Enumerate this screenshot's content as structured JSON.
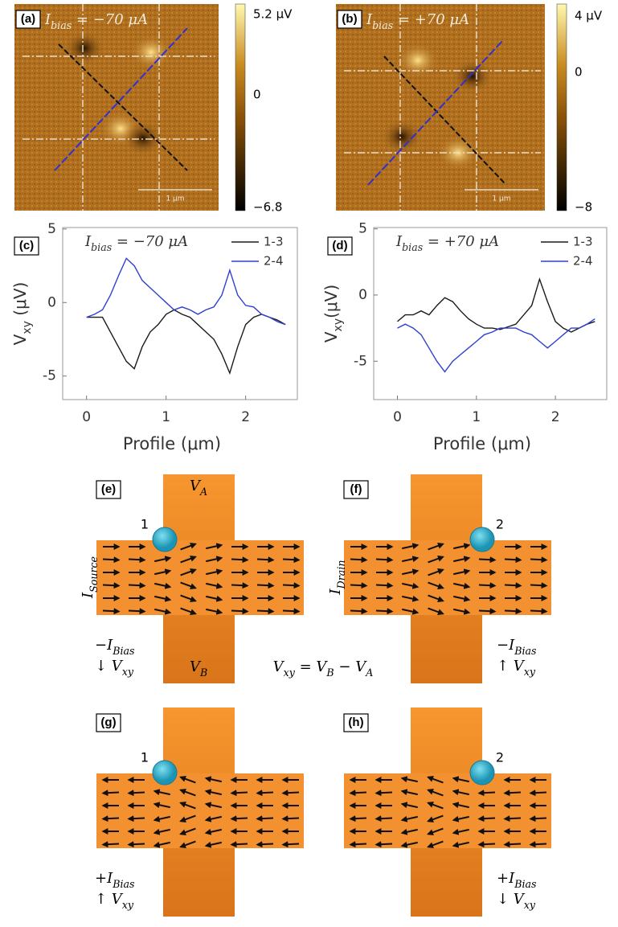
{
  "heatmaps": [
    {
      "label": "(a)",
      "title": [
        "I",
        "bias",
        " = −70 μA"
      ],
      "colorbar_labels": [
        "5.2 μV",
        "0",
        "−6.8"
      ],
      "scale_bar": "1 μm"
    },
    {
      "label": "(b)",
      "title": [
        "I",
        "bias",
        " = +70 μA"
      ],
      "colorbar_labels": [
        "4 μV",
        "0",
        "−8"
      ],
      "scale_bar": "1 μm"
    }
  ],
  "chart_data": [
    {
      "type": "line",
      "label": "(c)",
      "annotation": [
        "I",
        "bias",
        " = −70 μA"
      ],
      "xlabel": "Profile (μm)",
      "ylabel": [
        "V",
        "xy",
        " (μV)"
      ],
      "x": [
        0,
        0.1,
        0.2,
        0.3,
        0.4,
        0.5,
        0.6,
        0.7,
        0.8,
        0.9,
        1.0,
        1.1,
        1.2,
        1.3,
        1.4,
        1.5,
        1.6,
        1.7,
        1.8,
        1.9,
        2.0,
        2.1,
        2.2,
        2.3,
        2.4,
        2.5
      ],
      "xlim": [
        -0.3,
        2.65
      ],
      "ylim": [
        -6.6,
        5.1
      ],
      "xticks": [
        0,
        1,
        2
      ],
      "yticks": [
        -5,
        0,
        5
      ],
      "series": [
        {
          "name": "1-3",
          "color": "#1a1a1a",
          "values": [
            -1,
            -1,
            -1,
            -2,
            -3,
            -4,
            -4.5,
            -3,
            -2,
            -1.5,
            -0.8,
            -0.5,
            -0.8,
            -1,
            -1.5,
            -2,
            -2.5,
            -3.5,
            -4.8,
            -3,
            -1.5,
            -1,
            -0.8,
            -1,
            -1.2,
            -1.5
          ]
        },
        {
          "name": "2-4",
          "color": "#2f3fd0",
          "values": [
            -1,
            -0.8,
            -0.5,
            0.5,
            1.8,
            3,
            2.5,
            1.5,
            1,
            0.5,
            0,
            -0.5,
            -0.3,
            -0.5,
            -0.8,
            -0.5,
            -0.3,
            0.5,
            2.2,
            0.5,
            -0.2,
            -0.3,
            -0.8,
            -1,
            -1.3,
            -1.5
          ]
        }
      ]
    },
    {
      "type": "line",
      "label": "(d)",
      "annotation": [
        "I",
        "bias",
        " = +70 μA"
      ],
      "xlabel": "Profile (μm)",
      "ylabel": [
        "V",
        "xy",
        "(μV)"
      ],
      "x": [
        0,
        0.1,
        0.2,
        0.3,
        0.4,
        0.5,
        0.6,
        0.7,
        0.8,
        0.9,
        1.0,
        1.1,
        1.2,
        1.3,
        1.4,
        1.5,
        1.6,
        1.7,
        1.8,
        1.9,
        2.0,
        2.1,
        2.2,
        2.3,
        2.4,
        2.5
      ],
      "xlim": [
        -0.3,
        2.65
      ],
      "ylim": [
        -7.9,
        5.1
      ],
      "xticks": [
        0,
        1,
        2
      ],
      "yticks": [
        -5,
        0,
        5
      ],
      "series": [
        {
          "name": "1-3",
          "color": "#1a1a1a",
          "values": [
            -2,
            -1.5,
            -1.5,
            -1.2,
            -1.5,
            -0.8,
            -0.2,
            -0.5,
            -1.2,
            -1.8,
            -2.2,
            -2.5,
            -2.5,
            -2.6,
            -2.4,
            -2.2,
            -1.5,
            -0.8,
            1.2,
            -0.5,
            -2,
            -2.5,
            -2.8,
            -2.5,
            -2.2,
            -2
          ]
        },
        {
          "name": "2-4",
          "color": "#2f3fd0",
          "values": [
            -2.5,
            -2.2,
            -2.5,
            -3,
            -4,
            -5,
            -5.8,
            -5,
            -4.5,
            -4,
            -3.5,
            -3,
            -2.8,
            -2.5,
            -2.5,
            -2.5,
            -2.8,
            -3,
            -3.5,
            -4,
            -3.5,
            -3,
            -2.5,
            -2.5,
            -2.2,
            -1.8
          ]
        }
      ]
    }
  ],
  "diagrams": [
    {
      "label": "(e)",
      "contact": "1",
      "top": [
        "V",
        "A"
      ],
      "bottom": [
        "V",
        "B"
      ],
      "side": [
        "I",
        "Source"
      ],
      "bias": [
        "−I",
        "Bias"
      ],
      "vxy": [
        "↓ V",
        "xy"
      ]
    },
    {
      "label": "(f)",
      "contact": "2",
      "side": [
        "I",
        "Drain"
      ],
      "bias": [
        "−I",
        "Bias"
      ],
      "vxy": [
        "↑ V",
        "xy"
      ]
    },
    {
      "label": "(g)",
      "contact": "1",
      "bias": [
        "+I",
        "Bias"
      ],
      "vxy": [
        "↑ V",
        "xy"
      ]
    },
    {
      "label": "(h)",
      "contact": "2",
      "bias": [
        "+I",
        "Bias"
      ],
      "vxy": [
        "↓ V",
        "xy"
      ]
    }
  ],
  "equation": [
    "V",
    "xy",
    " = V",
    "B",
    " − V",
    "A"
  ]
}
